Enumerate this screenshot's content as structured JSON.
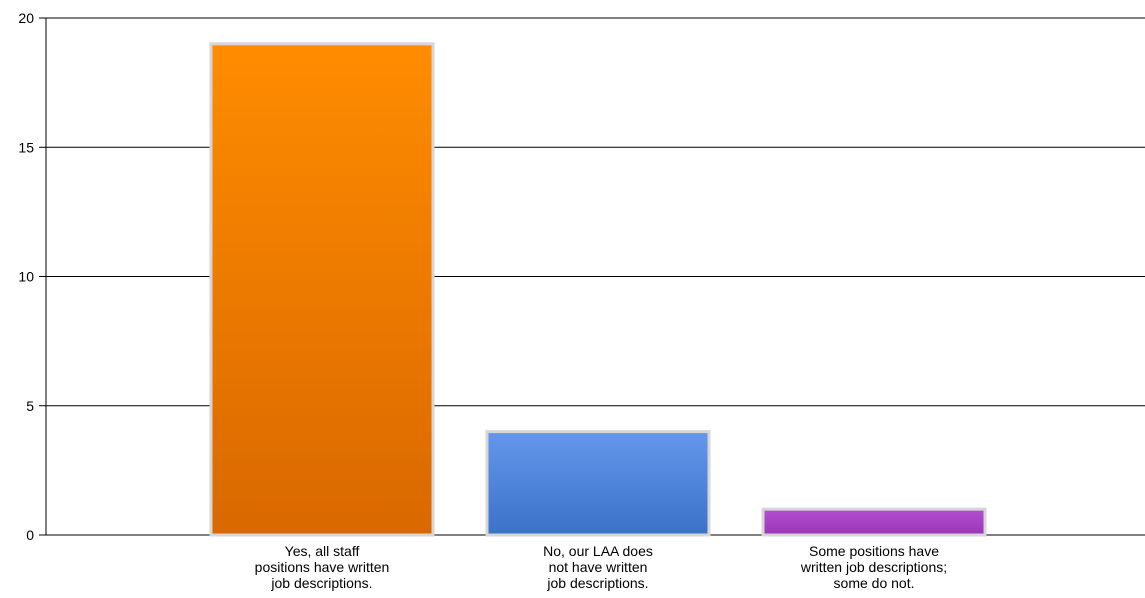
{
  "chart_data": {
    "type": "bar",
    "title": "",
    "xlabel": "",
    "ylabel": "",
    "ylim": [
      0,
      20
    ],
    "yticks": [
      0,
      5,
      10,
      15,
      20
    ],
    "grid": true,
    "categories": [
      [
        "Yes, all staff",
        "positions have written",
        "job descriptions."
      ],
      [
        "No, our LAA does",
        "not have written",
        "job descriptions."
      ],
      [
        "Some positions have",
        "written job descriptions;",
        "some do not."
      ]
    ],
    "values": [
      19,
      4,
      1
    ],
    "colors": [
      [
        "#ff8c00",
        "#d96800"
      ],
      [
        "#6597ec",
        "#3a72c8"
      ],
      [
        "#b350d0",
        "#9a35b8"
      ]
    ],
    "bar_border_color": "#d6d6d6",
    "axis_color": "#000000",
    "grid_color": "#000000"
  }
}
